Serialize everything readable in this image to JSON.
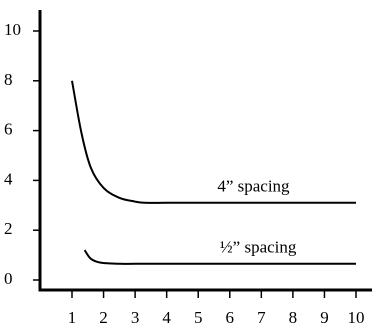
{
  "chart_data": {
    "type": "line",
    "title": "",
    "xlabel": "",
    "ylabel": "",
    "xlim": [
      0.5,
      10.2
    ],
    "ylim": [
      -0.4,
      11.0
    ],
    "x_ticks": [
      1,
      2,
      3,
      4,
      5,
      6,
      7,
      8,
      9,
      10
    ],
    "y_ticks": [
      0,
      2,
      4,
      6,
      8,
      10
    ],
    "x_tick_labels": [
      "1",
      "2",
      "3",
      "4",
      "5",
      "6",
      "7",
      "8",
      "9",
      "10"
    ],
    "y_tick_labels": [
      "0",
      "2",
      "4",
      "6",
      "8",
      "10"
    ],
    "grid": false,
    "legend": "none",
    "series": [
      {
        "name": "4”  spacing",
        "x": [
          1.0,
          1.3,
          1.6,
          2.0,
          2.5,
          3.0,
          3.3,
          4,
          5,
          6,
          7,
          8,
          9,
          10.0
        ],
        "y": [
          8.0,
          5.9,
          4.5,
          3.7,
          3.3,
          3.15,
          3.1,
          3.1,
          3.1,
          3.1,
          3.1,
          3.1,
          3.1,
          3.1
        ]
      },
      {
        "name": "½”  spacing",
        "x": [
          1.4,
          1.6,
          1.9,
          2.5,
          3.0,
          4,
          5,
          6,
          7,
          8,
          9,
          10.0
        ],
        "y": [
          1.2,
          0.85,
          0.7,
          0.65,
          0.65,
          0.65,
          0.65,
          0.65,
          0.65,
          0.65,
          0.65,
          0.65
        ]
      }
    ],
    "annotations": [
      {
        "text": "4”  spacing",
        "x": 6.75,
        "y": 3.8
      },
      {
        "text": "½”  spacing",
        "x": 6.9,
        "y": 1.35
      }
    ]
  }
}
